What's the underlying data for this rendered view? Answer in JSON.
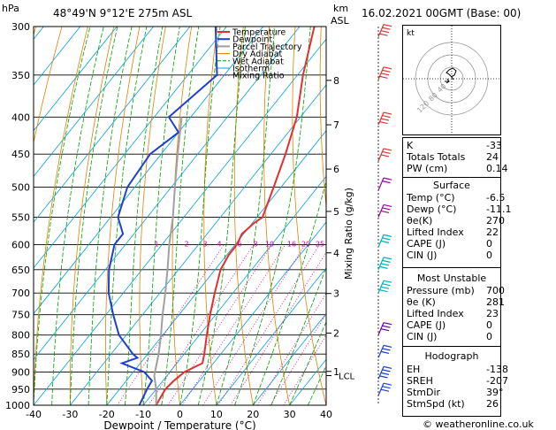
{
  "header": {
    "pressure_unit": "hPa",
    "location": "48°49'N  9°12'E  275m  ASL",
    "km_label": "km",
    "asl_label": "ASL",
    "datetime": "16.02.2021  00GMT  (Base: 00)"
  },
  "legend": [
    {
      "label": "Temperature",
      "color": "#e03030"
    },
    {
      "label": "Dewpoint",
      "color": "#2040d0"
    },
    {
      "label": "Parcel Trajectory",
      "color": "#a0a0a0"
    },
    {
      "label": "Dry Adiabat",
      "color": "#e08000"
    },
    {
      "label": "Wet Adiabat",
      "color": "#00a000"
    },
    {
      "label": "Isotherm",
      "color": "#00a0e0"
    },
    {
      "label": "Mixing Ratio",
      "color": "#d000a0"
    }
  ],
  "colors": {
    "temperature": "#e03030",
    "dewpoint": "#2040d0",
    "parcel": "#a0a0a0",
    "dry_adiabat": "#e08000",
    "wet_adiabat": "#00a000",
    "isotherm": "#00a0e0",
    "mixing_ratio": "#d000a0"
  },
  "chart_data": {
    "type": "line",
    "xlabel": "Dewpoint / Temperature (°C)",
    "ylabel": "hPa",
    "right_axis_label": "Mixing Ratio (g/kg)",
    "x_ticks": [
      -40,
      -30,
      -20,
      -10,
      0,
      10,
      20,
      30,
      40
    ],
    "pressure_levels": [
      300,
      350,
      400,
      450,
      500,
      550,
      600,
      650,
      700,
      750,
      800,
      850,
      900,
      950,
      1000
    ],
    "xlim": [
      -40,
      40
    ],
    "ylim": [
      1000,
      300
    ],
    "y_scale": "log",
    "skew": "skew-T",
    "km_ticks": [
      {
        "label": "8",
        "p": 356
      },
      {
        "label": "7",
        "p": 410
      },
      {
        "label": "6",
        "p": 472
      },
      {
        "label": "5",
        "p": 540
      },
      {
        "label": "4",
        "p": 616
      },
      {
        "label": "3",
        "p": 701
      },
      {
        "label": "2",
        "p": 795
      },
      {
        "label": "1",
        "p": 898
      }
    ],
    "lcl_label": "LCL",
    "lcl_p": 910,
    "mixing_ratio_labels": [
      "1",
      "2",
      "3",
      "4",
      "6",
      "8",
      "10",
      "16",
      "20",
      "25"
    ],
    "series": [
      {
        "name": "Temperature",
        "points": [
          {
            "p": 1000,
            "t": -6.5
          },
          {
            "p": 950,
            "t": -7.5
          },
          {
            "p": 925,
            "t": -7.0
          },
          {
            "p": 900,
            "t": -6.0
          },
          {
            "p": 875,
            "t": -3.0
          },
          {
            "p": 850,
            "t": -4.5
          },
          {
            "p": 800,
            "t": -8.0
          },
          {
            "p": 750,
            "t": -11.5
          },
          {
            "p": 700,
            "t": -15.0
          },
          {
            "p": 650,
            "t": -18.5
          },
          {
            "p": 620,
            "t": -19.5
          },
          {
            "p": 600,
            "t": -19.5
          },
          {
            "p": 580,
            "t": -20.5
          },
          {
            "p": 560,
            "t": -19.5
          },
          {
            "p": 550,
            "t": -18.5
          },
          {
            "p": 500,
            "t": -22.0
          },
          {
            "p": 450,
            "t": -26.0
          },
          {
            "p": 400,
            "t": -31.0
          },
          {
            "p": 350,
            "t": -38.5
          },
          {
            "p": 300,
            "t": -46.0
          }
        ]
      },
      {
        "name": "Dewpoint",
        "points": [
          {
            "p": 1000,
            "t": -11.1
          },
          {
            "p": 950,
            "t": -12.5
          },
          {
            "p": 925,
            "t": -13.0
          },
          {
            "p": 900,
            "t": -17.0
          },
          {
            "p": 875,
            "t": -25.0
          },
          {
            "p": 860,
            "t": -22.0
          },
          {
            "p": 850,
            "t": -24.0
          },
          {
            "p": 800,
            "t": -32.0
          },
          {
            "p": 750,
            "t": -38.0
          },
          {
            "p": 700,
            "t": -44.0
          },
          {
            "p": 650,
            "t": -49.0
          },
          {
            "p": 600,
            "t": -53.0
          },
          {
            "p": 580,
            "t": -53.0
          },
          {
            "p": 550,
            "t": -58.0
          },
          {
            "p": 500,
            "t": -62.0
          },
          {
            "p": 450,
            "t": -63.0
          },
          {
            "p": 420,
            "t": -60.0
          },
          {
            "p": 400,
            "t": -66.0
          },
          {
            "p": 350,
            "t": -62.0
          },
          {
            "p": 300,
            "t": -73.0
          }
        ]
      },
      {
        "name": "Parcel Trajectory",
        "points": [
          {
            "p": 1000,
            "t": -6.5
          },
          {
            "p": 950,
            "t": -10.0
          },
          {
            "p": 910,
            "t": -13.5
          },
          {
            "p": 850,
            "t": -17.0
          },
          {
            "p": 800,
            "t": -20.5
          },
          {
            "p": 750,
            "t": -24.5
          },
          {
            "p": 700,
            "t": -28.5
          },
          {
            "p": 650,
            "t": -33.0
          },
          {
            "p": 600,
            "t": -38.0
          },
          {
            "p": 550,
            "t": -43.0
          },
          {
            "p": 500,
            "t": -49.0
          },
          {
            "p": 450,
            "t": -55.5
          },
          {
            "p": 400,
            "t": -62.5
          }
        ]
      }
    ]
  },
  "indices": {
    "rows": [
      {
        "label": "K",
        "value": "-33"
      },
      {
        "label": "Totals Totals",
        "value": "24"
      },
      {
        "label": "PW (cm)",
        "value": "0.14"
      }
    ],
    "surface": {
      "title": "Surface",
      "rows": [
        {
          "label": "Temp (°C)",
          "value": "-6.5"
        },
        {
          "label": "Dewp (°C)",
          "value": "-11.1"
        },
        {
          "label": "θe(K)",
          "value": "270"
        },
        {
          "label": "Lifted Index",
          "value": "22"
        },
        {
          "label": "CAPE (J)",
          "value": "0"
        },
        {
          "label": "CIN (J)",
          "value": "0"
        }
      ]
    },
    "most_unstable": {
      "title": "Most Unstable",
      "rows": [
        {
          "label": "Pressure (mb)",
          "value": "700"
        },
        {
          "label": "θe (K)",
          "value": "281"
        },
        {
          "label": "Lifted Index",
          "value": "23"
        },
        {
          "label": "CAPE (J)",
          "value": "0"
        },
        {
          "label": "CIN (J)",
          "value": "0"
        }
      ]
    },
    "hodograph": {
      "title": "Hodograph",
      "rows": [
        {
          "label": "EH",
          "value": "-138"
        },
        {
          "label": "SREH",
          "value": "-207"
        },
        {
          "label": "StmDir",
          "value": "39°"
        },
        {
          "label": "StmSpd (kt)",
          "value": "26"
        }
      ]
    }
  },
  "hodograph_panel": {
    "unit_label": "kt",
    "ring_labels": [
      "40",
      "80",
      "120"
    ]
  },
  "footer": "© weatheronline.co.uk"
}
